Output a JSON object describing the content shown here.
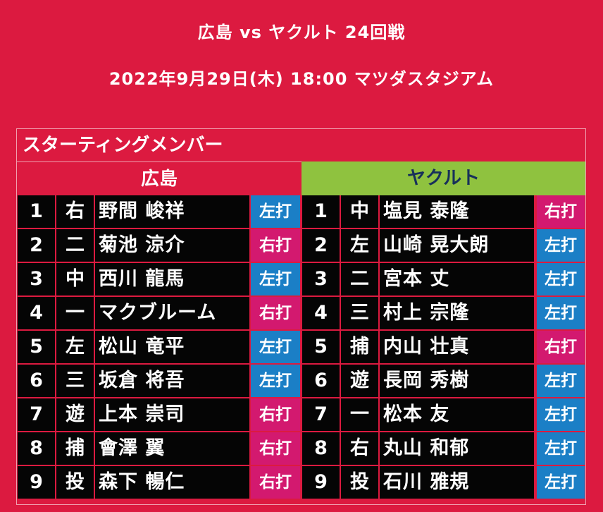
{
  "header": {
    "matchup": "広島 vs ヤクルト 24回戦",
    "datetime": "2022年9月29日(木) 18:00 マツダスタジアム"
  },
  "board": {
    "section_label": "スターティングメンバー",
    "home": {
      "name": "広島",
      "players": [
        {
          "num": "1",
          "pos": "右",
          "name": "野間 峻祥",
          "bat": "左打"
        },
        {
          "num": "2",
          "pos": "二",
          "name": "菊池 涼介",
          "bat": "右打"
        },
        {
          "num": "3",
          "pos": "中",
          "name": "西川 龍馬",
          "bat": "左打"
        },
        {
          "num": "4",
          "pos": "一",
          "name": "マクブルーム",
          "bat": "右打"
        },
        {
          "num": "5",
          "pos": "左",
          "name": "松山 竜平",
          "bat": "左打"
        },
        {
          "num": "6",
          "pos": "三",
          "name": "坂倉 将吾",
          "bat": "左打"
        },
        {
          "num": "7",
          "pos": "遊",
          "name": "上本 崇司",
          "bat": "右打"
        },
        {
          "num": "8",
          "pos": "捕",
          "name": "會澤 翼",
          "bat": "右打"
        },
        {
          "num": "9",
          "pos": "投",
          "name": "森下 暢仁",
          "bat": "右打"
        }
      ]
    },
    "away": {
      "name": "ヤクルト",
      "players": [
        {
          "num": "1",
          "pos": "中",
          "name": "塩見 泰隆",
          "bat": "右打"
        },
        {
          "num": "2",
          "pos": "左",
          "name": "山崎 晃大朗",
          "bat": "左打"
        },
        {
          "num": "3",
          "pos": "二",
          "name": "宮本 丈",
          "bat": "左打"
        },
        {
          "num": "4",
          "pos": "三",
          "name": "村上 宗隆",
          "bat": "左打"
        },
        {
          "num": "5",
          "pos": "捕",
          "name": "内山 壮真",
          "bat": "右打"
        },
        {
          "num": "6",
          "pos": "遊",
          "name": "長岡 秀樹",
          "bat": "左打"
        },
        {
          "num": "7",
          "pos": "一",
          "name": "松本 友",
          "bat": "左打"
        },
        {
          "num": "8",
          "pos": "右",
          "name": "丸山 和郁",
          "bat": "左打"
        },
        {
          "num": "9",
          "pos": "投",
          "name": "石川 雅規",
          "bat": "左打"
        }
      ]
    }
  },
  "colors": {
    "background": "#dc1a40",
    "away_header": "#8fc23f",
    "bat_left": "#1b7fc6",
    "bat_right": "#d3196f"
  }
}
